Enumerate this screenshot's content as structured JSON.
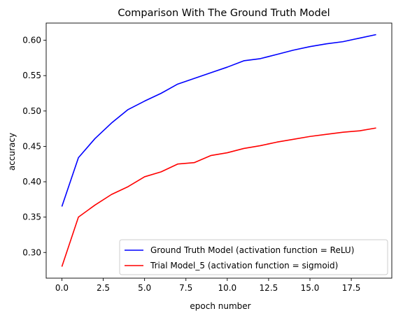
{
  "chart_data": {
    "type": "line",
    "title": "Comparison With The Ground Truth Model",
    "xlabel": "epoch number",
    "ylabel": "accuracy",
    "xlim": [
      -0.95,
      19.95
    ],
    "ylim": [
      0.2637,
      0.6243
    ],
    "xticks": [
      0.0,
      2.5,
      5.0,
      7.5,
      10.0,
      12.5,
      15.0,
      17.5
    ],
    "xtick_labels": [
      "0.0",
      "2.5",
      "5.0",
      "7.5",
      "10.0",
      "12.5",
      "15.0",
      "17.5"
    ],
    "yticks": [
      0.3,
      0.35,
      0.4,
      0.45,
      0.5,
      0.55,
      0.6
    ],
    "ytick_labels": [
      "0.30",
      "0.35",
      "0.40",
      "0.45",
      "0.50",
      "0.55",
      "0.60"
    ],
    "grid": false,
    "legend_position": "lower-right",
    "x": [
      0,
      1,
      2,
      3,
      4,
      5,
      6,
      7,
      8,
      9,
      10,
      11,
      12,
      13,
      14,
      15,
      16,
      17,
      18,
      19
    ],
    "series": [
      {
        "name": "Ground Truth Model (activation function = ReLU)",
        "color": "#0000ff",
        "values": [
          0.365,
          0.434,
          0.461,
          0.483,
          0.502,
          0.514,
          0.525,
          0.538,
          0.546,
          0.554,
          0.562,
          0.571,
          0.574,
          0.58,
          0.586,
          0.591,
          0.595,
          0.598,
          0.603,
          0.608
        ]
      },
      {
        "name": "Trial Model_5 (activation function = sigmoid)",
        "color": "#ff0000",
        "values": [
          0.28,
          0.35,
          0.367,
          0.382,
          0.393,
          0.407,
          0.414,
          0.425,
          0.427,
          0.437,
          0.441,
          0.447,
          0.451,
          0.456,
          0.46,
          0.464,
          0.467,
          0.47,
          0.472,
          0.476
        ]
      }
    ]
  }
}
